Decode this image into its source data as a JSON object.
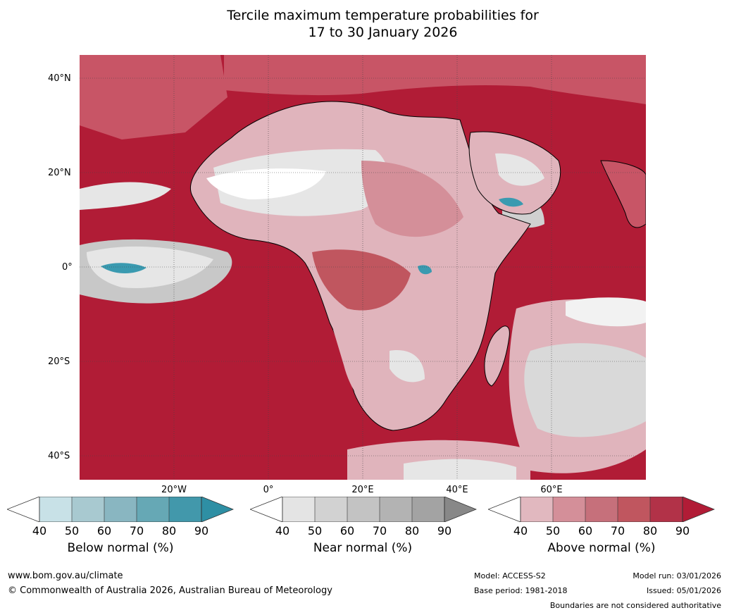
{
  "title": {
    "line1": "Tercile maximum temperature probabilities for",
    "line2": "17 to 30 January 2026"
  },
  "map": {
    "lat_labels": [
      "40°N",
      "20°N",
      "0°",
      "20°S",
      "40°S"
    ],
    "lon_labels": [
      "20°W",
      "0°",
      "20°E",
      "40°E",
      "60°E"
    ],
    "colors": {
      "above_dark": "#b11c36",
      "above_mid": "#c85566",
      "above_light": "#e0b4bc",
      "near_light": "#e6e6e6",
      "near_mid": "#c8c8c8",
      "below": "#3a9ab0",
      "land_border": "#000000",
      "country_border": "#808080"
    }
  },
  "legends": [
    {
      "label": "Below normal (%)",
      "ticks": [
        "40",
        "50",
        "60",
        "70",
        "80",
        "90"
      ],
      "colors": [
        "#ffffff",
        "#c8e1e7",
        "#a8c9d0",
        "#89b6c1",
        "#66a8b5",
        "#4298ab",
        "#2e8fa4"
      ]
    },
    {
      "label": "Near normal (%)",
      "ticks": [
        "40",
        "50",
        "60",
        "70",
        "80",
        "90"
      ],
      "colors": [
        "#ffffff",
        "#e4e4e4",
        "#d2d2d2",
        "#c3c3c3",
        "#b3b3b3",
        "#a3a3a3",
        "#888888"
      ]
    },
    {
      "label": "Above normal (%)",
      "ticks": [
        "40",
        "50",
        "60",
        "70",
        "80",
        "90"
      ],
      "colors": [
        "#ffffff",
        "#e1b8bf",
        "#d48f99",
        "#c6707b",
        "#c0565f",
        "#b23248",
        "#b11c36"
      ]
    }
  ],
  "footer": {
    "website": "www.bom.gov.au/climate",
    "copyright": "© Commonwealth of Australia 2026, Australian Bureau of Meteorology",
    "model": "Model: ACCESS-S2",
    "base_period": "Base period: 1981-2018",
    "model_run": "Model run: 03/01/2026",
    "issued": "Issued: 05/01/2026",
    "disclaimer": "Boundaries are not considered authoritative"
  }
}
